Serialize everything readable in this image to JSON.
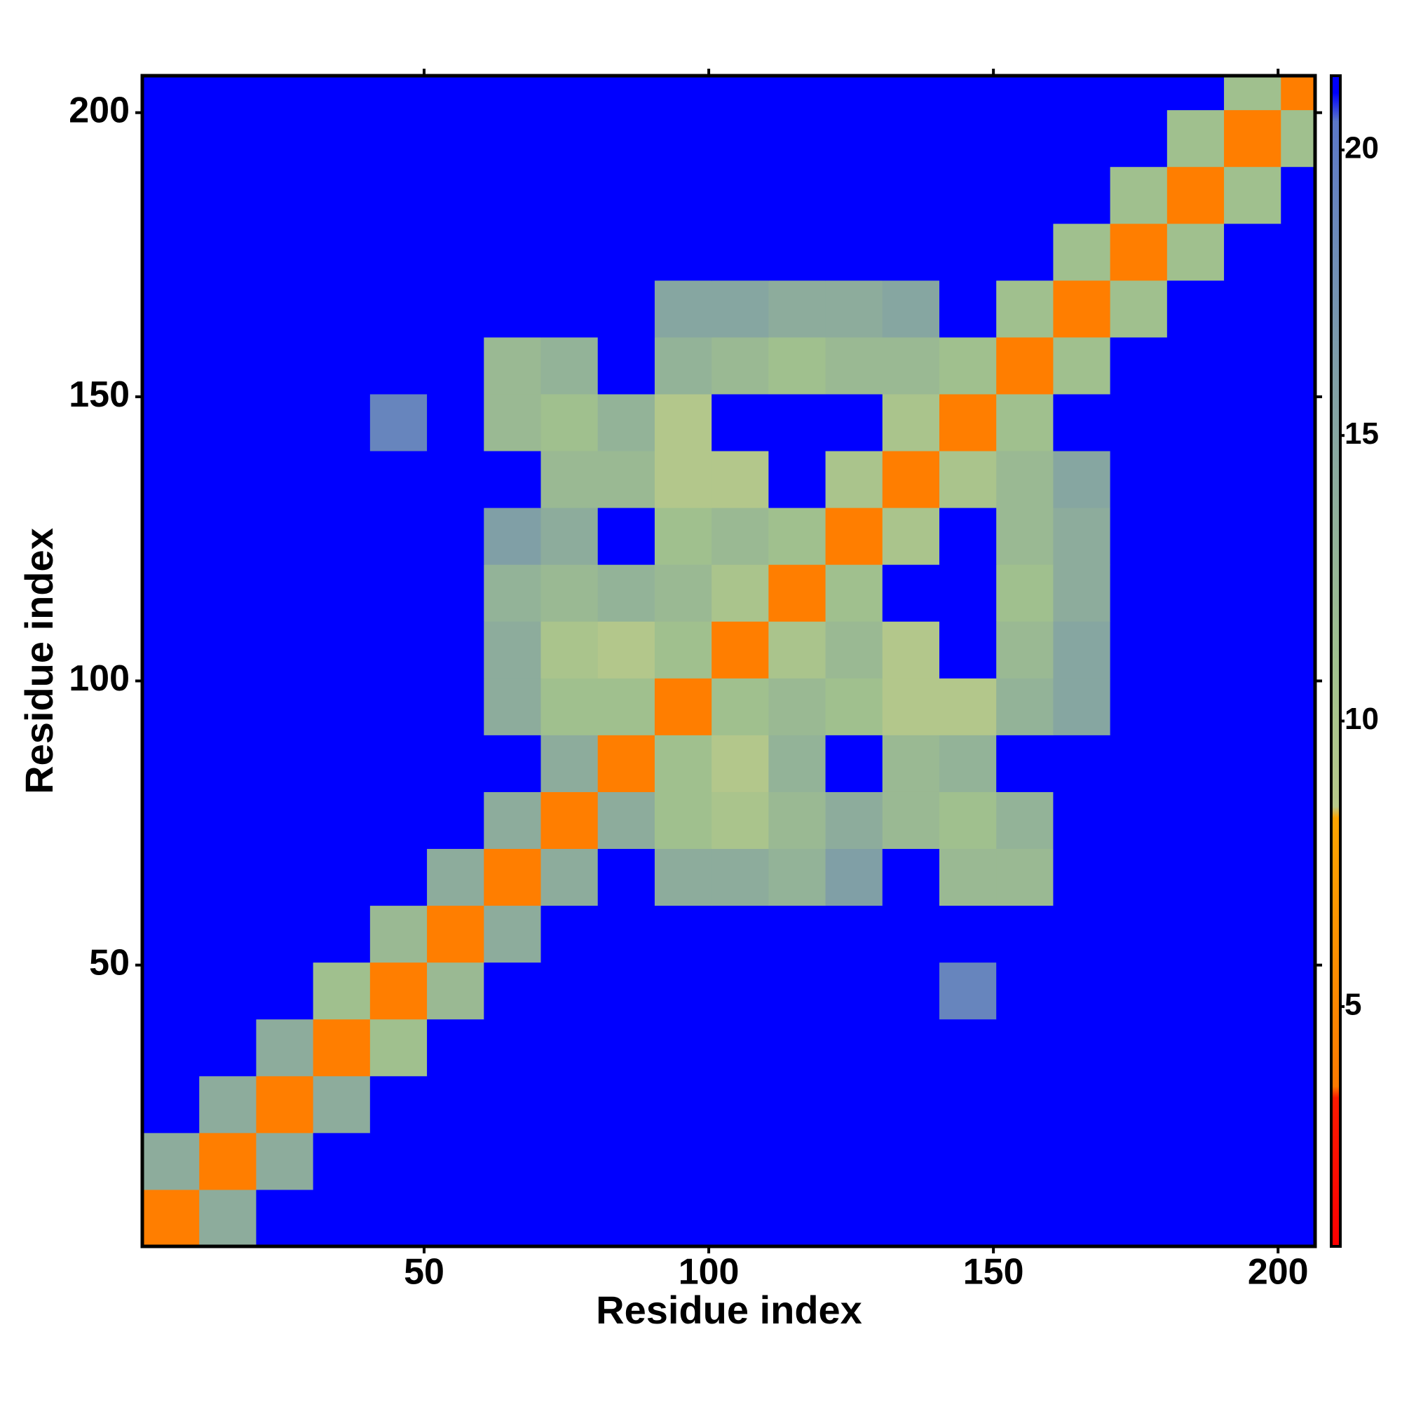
{
  "chart_data": {
    "type": "heatmap",
    "x_label": "Residue index",
    "y_label": "Residue index",
    "bins": [
      0.5,
      10.5,
      20.5,
      30.5,
      40.5,
      50.5,
      60.5,
      70.5,
      80.5,
      90.5,
      100.5,
      110.5,
      120.5,
      130.5,
      140.5,
      150.5,
      160.5,
      170.5,
      180.5,
      190.5,
      200.5,
      206.5
    ],
    "xlim": [
      0.5,
      206.5
    ],
    "ylim": [
      0.5,
      206.5
    ],
    "xticks": [
      50,
      100,
      150,
      200
    ],
    "yticks": [
      50,
      100,
      150,
      200
    ],
    "zlim": [
      0.8,
      21.3
    ],
    "zticks": [
      5,
      10,
      15,
      20
    ],
    "colorscale": [
      [
        0.8,
        "#ff0000"
      ],
      [
        3.4,
        "#ff1a00"
      ],
      [
        3.6,
        "#ff7a00"
      ],
      [
        8.3,
        "#ffa500"
      ],
      [
        8.5,
        "#b8c98a"
      ],
      [
        11,
        "#a0c08e"
      ],
      [
        16,
        "#809fa6"
      ],
      [
        20.5,
        "#5b78c8"
      ],
      [
        21,
        "#0000ff"
      ]
    ],
    "z": [
      [
        4,
        14,
        21,
        21,
        21,
        21,
        21,
        21,
        21,
        21,
        21,
        21,
        21,
        21,
        21,
        21,
        21,
        21,
        21,
        21,
        21
      ],
      [
        14,
        4,
        14,
        21,
        21,
        21,
        21,
        21,
        21,
        21,
        21,
        21,
        21,
        21,
        21,
        21,
        21,
        21,
        21,
        21,
        21
      ],
      [
        21,
        14,
        4,
        14,
        21,
        21,
        21,
        21,
        21,
        21,
        21,
        21,
        21,
        21,
        21,
        21,
        21,
        21,
        21,
        21,
        21
      ],
      [
        21,
        21,
        14,
        4,
        11,
        21,
        21,
        21,
        21,
        21,
        21,
        21,
        21,
        21,
        21,
        21,
        21,
        21,
        21,
        21,
        21
      ],
      [
        21,
        21,
        21,
        11,
        4,
        12,
        21,
        21,
        21,
        21,
        21,
        21,
        21,
        21,
        19,
        21,
        21,
        21,
        21,
        21,
        21
      ],
      [
        21,
        21,
        21,
        21,
        12,
        4,
        14,
        21,
        21,
        21,
        21,
        21,
        21,
        21,
        21,
        21,
        21,
        21,
        21,
        21,
        21
      ],
      [
        21,
        21,
        21,
        21,
        21,
        14,
        4,
        14,
        21,
        14,
        14,
        13,
        16,
        21,
        12,
        12,
        21,
        21,
        21,
        21,
        21
      ],
      [
        21,
        21,
        21,
        21,
        21,
        21,
        14,
        4,
        14,
        11,
        10,
        12,
        14,
        12,
        11,
        13,
        21,
        21,
        21,
        21,
        21
      ],
      [
        21,
        21,
        21,
        21,
        21,
        21,
        21,
        14,
        4,
        11,
        9,
        13,
        21,
        12,
        13,
        21,
        21,
        21,
        21,
        21,
        21
      ],
      [
        21,
        21,
        21,
        21,
        21,
        21,
        14,
        11,
        11,
        4,
        11,
        12,
        11,
        9,
        9,
        13,
        15,
        21,
        21,
        21,
        21
      ],
      [
        21,
        21,
        21,
        21,
        21,
        21,
        14,
        10,
        9,
        11,
        4,
        10,
        12,
        9,
        21,
        12,
        15,
        21,
        21,
        21,
        21
      ],
      [
        21,
        21,
        21,
        21,
        21,
        21,
        13,
        12,
        13,
        12,
        10,
        4,
        11,
        21,
        21,
        11,
        14,
        21,
        21,
        21,
        21
      ],
      [
        21,
        21,
        21,
        21,
        21,
        21,
        16,
        14,
        21,
        11,
        12,
        11,
        4,
        10,
        21,
        12,
        14,
        21,
        21,
        21,
        21
      ],
      [
        21,
        21,
        21,
        21,
        21,
        21,
        21,
        12,
        12,
        9,
        9,
        21,
        10,
        4,
        10,
        12,
        15,
        21,
        21,
        21,
        21
      ],
      [
        21,
        21,
        21,
        21,
        19,
        21,
        12,
        11,
        13,
        9,
        21,
        21,
        21,
        10,
        4,
        11,
        21,
        21,
        21,
        21,
        21
      ],
      [
        21,
        21,
        21,
        21,
        21,
        21,
        12,
        13,
        21,
        13,
        12,
        11,
        12,
        12,
        11,
        4,
        11,
        21,
        21,
        21,
        21
      ],
      [
        21,
        21,
        21,
        21,
        21,
        21,
        21,
        21,
        21,
        15,
        15,
        14,
        14,
        15,
        21,
        11,
        4,
        11,
        21,
        21,
        21
      ],
      [
        21,
        21,
        21,
        21,
        21,
        21,
        21,
        21,
        21,
        21,
        21,
        21,
        21,
        21,
        21,
        21,
        11,
        4,
        11,
        21,
        21
      ],
      [
        21,
        21,
        21,
        21,
        21,
        21,
        21,
        21,
        21,
        21,
        21,
        21,
        21,
        21,
        21,
        21,
        21,
        11,
        4,
        11,
        21
      ],
      [
        21,
        21,
        21,
        21,
        21,
        21,
        21,
        21,
        21,
        21,
        21,
        21,
        21,
        21,
        21,
        21,
        21,
        21,
        11,
        4,
        11
      ],
      [
        21,
        21,
        21,
        21,
        21,
        21,
        21,
        21,
        21,
        21,
        21,
        21,
        21,
        21,
        21,
        21,
        21,
        21,
        21,
        11,
        4
      ]
    ]
  }
}
